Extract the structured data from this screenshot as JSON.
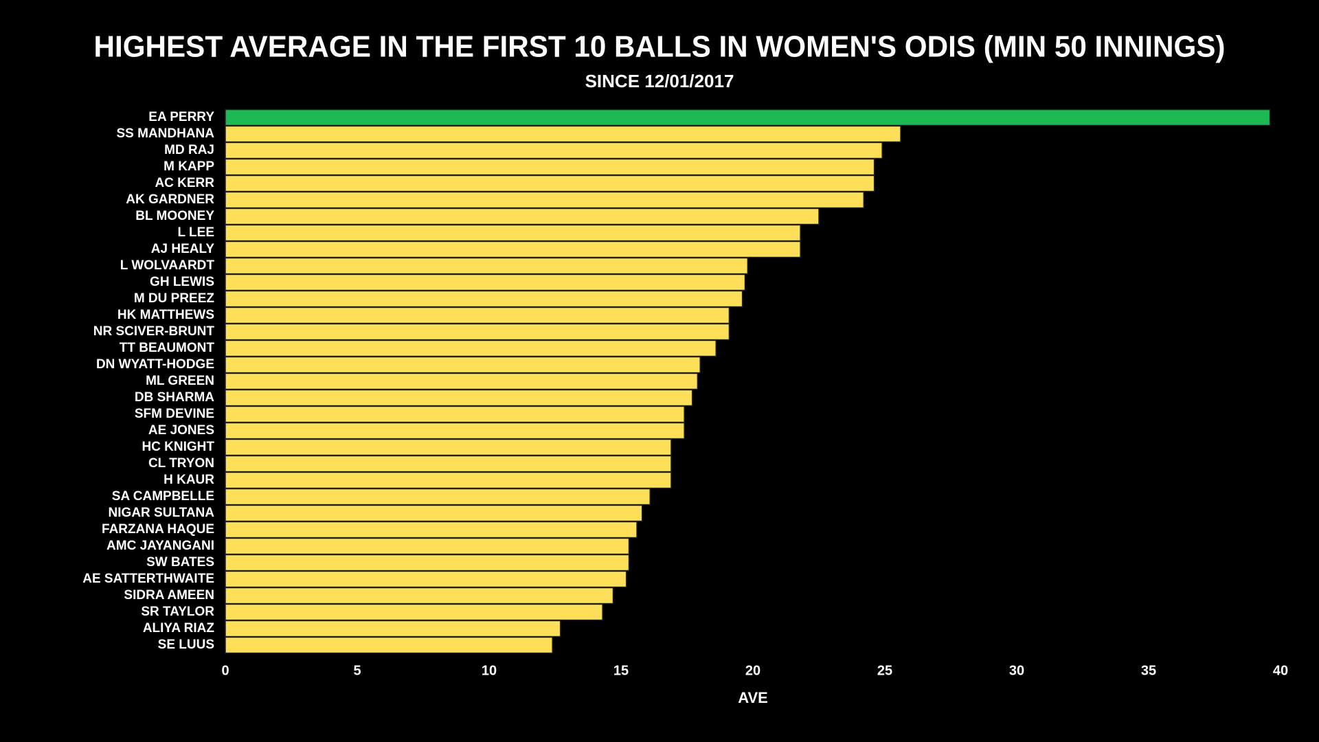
{
  "chart_data": {
    "type": "bar",
    "orientation": "horizontal",
    "title": "HIGHEST AVERAGE IN THE FIRST 10 BALLS IN WOMEN'S ODIS (MIN 50 INNINGS)",
    "subtitle": "SINCE 12/01/2017",
    "x_label": "AVE",
    "categories": [
      "EA PERRY",
      "SS MANDHANA",
      "MD RAJ",
      "M KAPP",
      "AC KERR",
      "AK GARDNER",
      "BL MOONEY",
      "L LEE",
      "AJ HEALY",
      "L WOLVAARDT",
      "GH LEWIS",
      "M DU PREEZ",
      "HK MATTHEWS",
      "NR SCIVER-BRUNT",
      "TT BEAUMONT",
      "DN WYATT-HODGE",
      "ML GREEN",
      "DB SHARMA",
      "SFM DEVINE",
      "AE JONES",
      "HC KNIGHT",
      "CL TRYON",
      "H KAUR",
      "SA CAMPBELLE",
      "NIGAR SULTANA",
      "FARZANA HAQUE",
      "AMC JAYANGANI",
      "SW BATES",
      "AE SATTERTHWAITE",
      "SIDRA AMEEN",
      "SR TAYLOR",
      "ALIYA RIAZ",
      "SE LUUS"
    ],
    "values": [
      39.6,
      25.6,
      24.9,
      24.6,
      24.6,
      24.2,
      22.5,
      21.8,
      21.8,
      19.8,
      19.7,
      19.6,
      19.1,
      19.1,
      18.6,
      18.0,
      17.9,
      17.7,
      17.4,
      17.4,
      16.9,
      16.9,
      16.9,
      16.1,
      15.8,
      15.6,
      15.3,
      15.3,
      15.2,
      14.7,
      14.3,
      12.7,
      12.4
    ],
    "colors": [
      "#1db954",
      "#fddf5a",
      "#fddf5a",
      "#fddf5a",
      "#fddf5a",
      "#fddf5a",
      "#fddf5a",
      "#fddf5a",
      "#fddf5a",
      "#fddf5a",
      "#fddf5a",
      "#fddf5a",
      "#fddf5a",
      "#fddf5a",
      "#fddf5a",
      "#fddf5a",
      "#fddf5a",
      "#fddf5a",
      "#fddf5a",
      "#fddf5a",
      "#fddf5a",
      "#fddf5a",
      "#fddf5a",
      "#fddf5a",
      "#fddf5a",
      "#fddf5a",
      "#fddf5a",
      "#fddf5a",
      "#fddf5a",
      "#fddf5a",
      "#fddf5a",
      "#fddf5a",
      "#fddf5a"
    ],
    "xlim": [
      0,
      40
    ],
    "xticks": [
      0,
      5,
      10,
      15,
      20,
      25,
      30,
      35,
      40
    ],
    "grid": false
  }
}
